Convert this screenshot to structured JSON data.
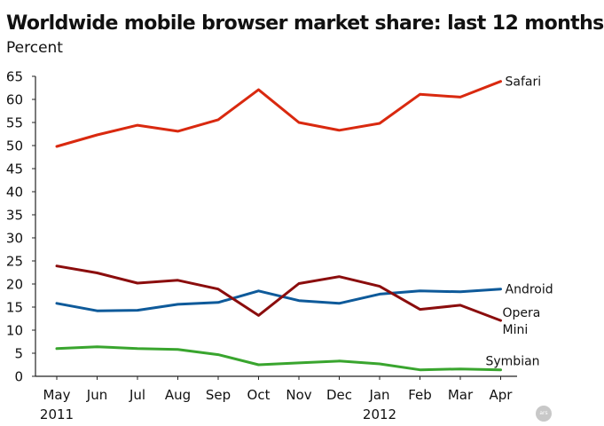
{
  "chart_data": {
    "type": "line",
    "title": "Worldwide mobile browser market share: last 12 months",
    "subtitle": "Percent",
    "categories": [
      "May",
      "Jun",
      "Jul",
      "Aug",
      "Sep",
      "Oct",
      "Nov",
      "Dec",
      "Jan",
      "Feb",
      "Mar",
      "Apr"
    ],
    "year_labels": [
      "2011",
      "",
      "",
      "",
      "",
      "",
      "",
      "",
      "2012",
      "",
      "",
      ""
    ],
    "ylim": [
      0,
      65
    ],
    "yticks": [
      0,
      5,
      10,
      15,
      20,
      25,
      30,
      35,
      40,
      45,
      50,
      55,
      60,
      65
    ],
    "grid": false,
    "legend": "direct labels at line ends",
    "series": [
      {
        "name": "Safari",
        "color": "#d9290f",
        "values": [
          49.8,
          52.3,
          54.4,
          53.1,
          55.6,
          62.1,
          55.0,
          53.3,
          54.8,
          61.1,
          60.5,
          63.9
        ]
      },
      {
        "name": "Android",
        "color": "#0e5a9a",
        "values": [
          15.8,
          14.2,
          14.3,
          15.6,
          16.0,
          18.5,
          16.4,
          15.8,
          17.8,
          18.5,
          18.3,
          18.9
        ]
      },
      {
        "name": "Opera Mini",
        "label_lines": [
          "Opera",
          "Mini"
        ],
        "color": "#8b0d0d",
        "values": [
          23.9,
          22.4,
          20.2,
          20.8,
          18.9,
          13.2,
          20.1,
          21.6,
          19.5,
          14.5,
          15.4,
          12.1
        ]
      },
      {
        "name": "Symbian",
        "color": "#39a52e",
        "values": [
          6.0,
          6.4,
          6.0,
          5.8,
          4.7,
          2.5,
          2.9,
          3.3,
          2.7,
          1.4,
          1.6,
          1.4
        ]
      }
    ]
  },
  "branding": {
    "logo_text": "ars"
  }
}
